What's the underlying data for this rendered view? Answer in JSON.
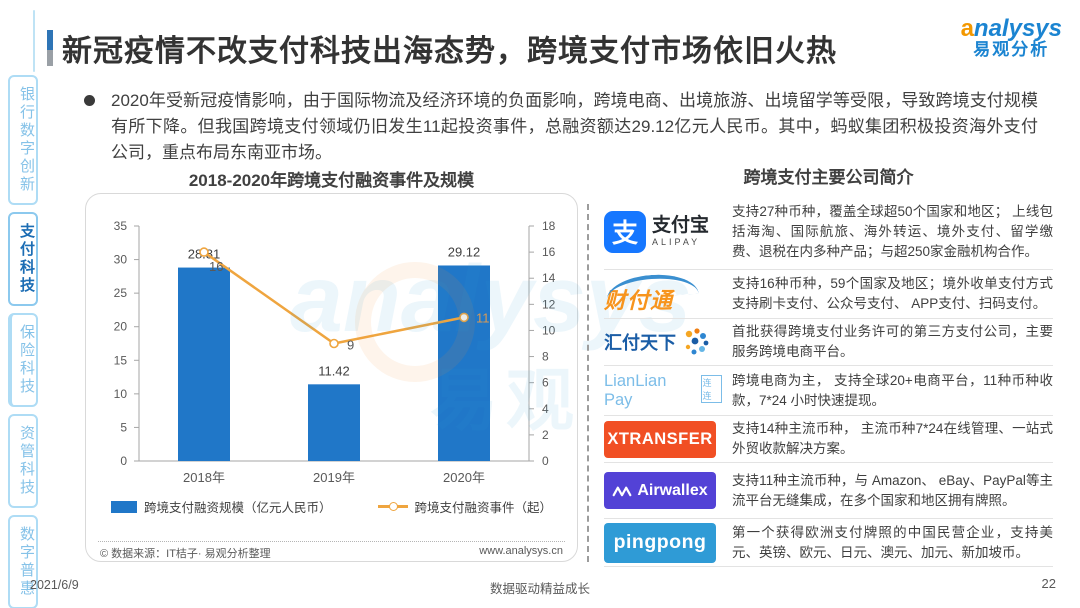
{
  "page": {
    "title": "新冠疫情不改支付科技出海态势，跨境支付市场依旧火热",
    "bullet": "2020年受新冠疫情影响，由于国际物流及经济环境的负面影响，跨境电商、出境旅游、出境留学等受限，导致跨境支付规模有所下降。但我国跨境支付领域仍旧发生11起投资事件，总融资额达29.12亿元人民币。其中，蚂蚁集团积极投资海外支付公司，重点布局东南亚市场。",
    "brand": {
      "en_a": "a",
      "en_rest": "nalysys",
      "cn": "易观分析"
    },
    "watermark": {
      "text1": "analysys",
      "text2": "易观"
    },
    "footer": {
      "date": "2021/6/9",
      "slogan": "数据驱动精益成长",
      "page_number": "22"
    }
  },
  "sidebar": {
    "items": [
      {
        "label": "银行数字创新",
        "active": false
      },
      {
        "label": "支付科技",
        "active": true
      },
      {
        "label": "保险科技",
        "active": false
      },
      {
        "label": "资管科技",
        "active": false
      },
      {
        "label": "数字普惠",
        "active": false
      }
    ]
  },
  "chart_data": {
    "type": "bar+line",
    "title": "2018-2020年跨境支付融资事件及规模",
    "categories": [
      "2018年",
      "2019年",
      "2020年"
    ],
    "series": [
      {
        "name": "跨境支付融资规模（亿元人民币）",
        "type": "bar",
        "axis": "left",
        "values": [
          28.81,
          11.42,
          29.12
        ],
        "color": "#2077C8"
      },
      {
        "name": "跨境支付融资事件（起）",
        "type": "line",
        "axis": "right",
        "values": [
          16,
          9,
          11
        ],
        "color": "#EFA53F"
      }
    ],
    "left_axis": {
      "min": 0,
      "max": 35,
      "step": 5
    },
    "right_axis": {
      "min": 0,
      "max": 18,
      "step": 2
    },
    "grid": false,
    "legend_position": "bottom",
    "source_left": "© 数据来源：IT桔子· 易观分析整理",
    "source_right": "www.analysys.cn"
  },
  "companies": {
    "title": "跨境支付主要公司简介",
    "rows": [
      {
        "name": "支付宝",
        "logo_parts": {
          "mark": "支",
          "cn": "支付宝",
          "en": "ALIPAY"
        },
        "desc": "支持27种币种，覆盖全球超50个国家和地区； 上线包括海淘、国际航旅、海外转运、境外支付、留学缴费、退税在内多种产品；与超250家金融机构合作。"
      },
      {
        "name": "财付通",
        "logo_parts": {
          "cn": "财付通"
        },
        "desc": "支持16种币种，59个国家及地区；境外收单支付方式支持刷卡支付、公众号支付、 APP支付、扫码支付。"
      },
      {
        "name": "汇付天下",
        "logo_parts": {
          "cn": "汇付天下"
        },
        "desc": "首批获得跨境支付业务许可的第三方支付公司，主要服务跨境电商平台。"
      },
      {
        "name": "LianLian Pay",
        "logo_parts": {
          "en": "LianLian Pay",
          "cn": "连连"
        },
        "desc": "跨境电商为主， 支持全球20+电商平台，11种币种收款，7*24 小时快速提现。"
      },
      {
        "name": "XTRANSFER",
        "logo_parts": {
          "en": "XTRANSFER"
        },
        "desc": "支持14种主流币种， 主流币种7*24在线管理、一站式外贸收款解决方案。"
      },
      {
        "name": "Airwallex",
        "logo_parts": {
          "en": "Airwallex"
        },
        "desc": "支持11种主流币种，与 Amazon、 eBay、PayPal等主流平台无缝集成，在多个国家和地区拥有牌照。"
      },
      {
        "name": "PingPong",
        "logo_parts": {
          "en": "pingpong"
        },
        "desc": "第一个获得欧洲支付牌照的中国民营企业，支持美元、英镑、欧元、日元、澳元、加元、新加坡币。"
      }
    ]
  }
}
